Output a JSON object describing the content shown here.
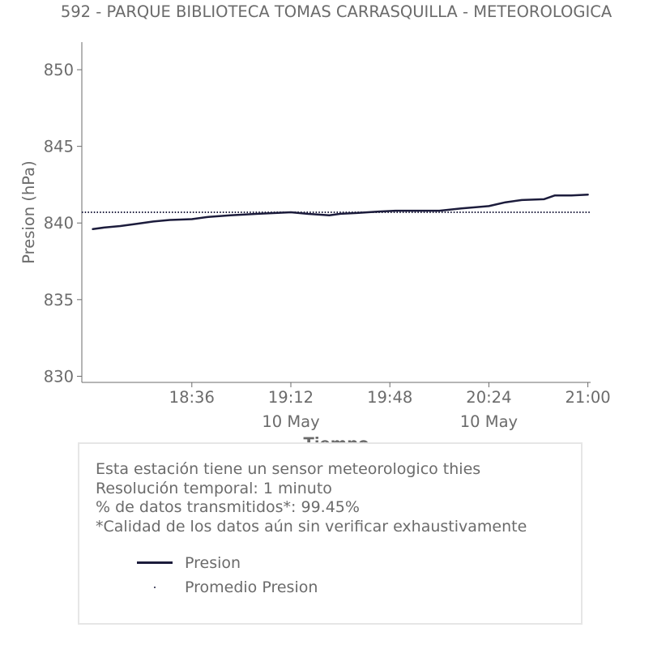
{
  "chart_data": {
    "type": "line",
    "title": "592 - PARQUE BIBLIOTECA TOMAS CARRASQUILLA - METEOROLOGICA",
    "xlabel": "Tiempo",
    "ylabel": "Presion (hPa)",
    "ylim": [
      829.6,
      851.8
    ],
    "xlim": [
      "2019-05-10 17:56",
      "2019-05-10 21:01"
    ],
    "yticks": [
      830,
      835,
      840,
      845,
      850
    ],
    "xticks": [
      {
        "value": "2019-05-10 18:36",
        "label": "18:36",
        "sublabel": ""
      },
      {
        "value": "2019-05-10 19:12",
        "label": "19:12",
        "sublabel": "10 May"
      },
      {
        "value": "2019-05-10 19:48",
        "label": "19:48",
        "sublabel": ""
      },
      {
        "value": "2019-05-10 20:24",
        "label": "20:24",
        "sublabel": "10 May"
      },
      {
        "value": "2019-05-10 21:00",
        "label": "21:00",
        "sublabel": ""
      }
    ],
    "grid": false,
    "series": [
      {
        "name": "Presion",
        "style": "solid",
        "color": "#1c1c3c",
        "x": [
          "2019-05-10 18:00",
          "2019-05-10 18:04",
          "2019-05-10 18:10",
          "2019-05-10 18:16",
          "2019-05-10 18:22",
          "2019-05-10 18:28",
          "2019-05-10 18:36",
          "2019-05-10 18:42",
          "2019-05-10 18:50",
          "2019-05-10 19:00",
          "2019-05-10 19:12",
          "2019-05-10 19:18",
          "2019-05-10 19:26",
          "2019-05-10 19:30",
          "2019-05-10 19:36",
          "2019-05-10 19:44",
          "2019-05-10 19:50",
          "2019-05-10 19:56",
          "2019-05-10 20:06",
          "2019-05-10 20:14",
          "2019-05-10 20:24",
          "2019-05-10 20:30",
          "2019-05-10 20:36",
          "2019-05-10 20:44",
          "2019-05-10 20:48",
          "2019-05-10 20:54",
          "2019-05-10 21:00"
        ],
        "y": [
          839.6,
          839.7,
          839.8,
          839.95,
          840.1,
          840.2,
          840.25,
          840.4,
          840.5,
          840.6,
          840.7,
          840.6,
          840.5,
          840.6,
          840.65,
          840.75,
          840.8,
          840.8,
          840.8,
          840.95,
          841.1,
          841.35,
          841.5,
          841.55,
          841.8,
          841.8,
          841.85
        ]
      },
      {
        "name": "Promedio Presion",
        "style": "dotted",
        "color": "#1c1c3c",
        "x": [
          "2019-05-10 17:56",
          "2019-05-10 21:01"
        ],
        "y": [
          840.7,
          840.7
        ]
      }
    ],
    "legend_position": "inside-info-box"
  },
  "info": {
    "lines": [
      "Esta estación tiene un sensor meteorologico thies",
      "Resolución temporal: 1 minuto",
      "% de datos transmitidos*: 99.45%",
      "*Calidad de los datos aún sin verificar exhaustivamente"
    ]
  },
  "legend": {
    "items": [
      "Presion",
      "Promedio Presion"
    ]
  }
}
